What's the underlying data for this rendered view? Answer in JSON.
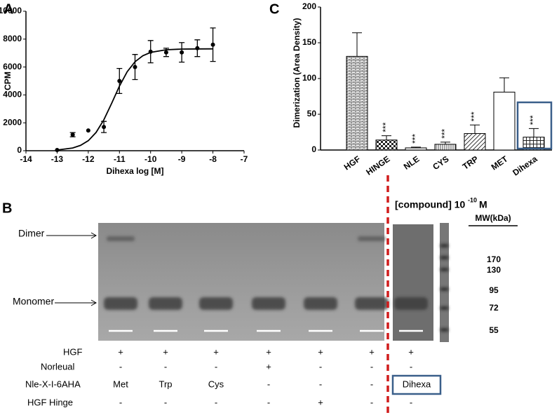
{
  "chart_data": [
    {
      "type": "scatter",
      "panel_label": "A",
      "x_label": "Dihexa log [M]",
      "y_label": "CPM",
      "x": [
        -13,
        -12.5,
        -12,
        -11.5,
        -11,
        -10.5,
        -10,
        -9.5,
        -9,
        -8.5,
        -8
      ],
      "series": [
        {
          "color": "#000000",
          "values": [
            50,
            1150,
            1450,
            1700,
            5000,
            6000,
            7100,
            7050,
            7050,
            7350,
            7600
          ],
          "errors": [
            0,
            150,
            0,
            400,
            900,
            900,
            800,
            300,
            700,
            600,
            1200
          ]
        }
      ],
      "fit": {
        "x": [
          -13,
          -12.5,
          -12.25,
          -12,
          -11.75,
          -11.5,
          -11.25,
          -11,
          -10.75,
          -10.5,
          -10.25,
          -10,
          -9.5,
          -9,
          -8.5,
          -8
        ],
        "values": [
          50,
          196,
          380,
          721,
          1310,
          2221,
          3398,
          4635,
          5667,
          6378,
          6807,
          7044,
          7234,
          7285,
          7298,
          7300
        ]
      },
      "xlim": [
        -14,
        -7
      ],
      "xticks": [
        -14,
        -13,
        -12,
        -11,
        -10,
        -9,
        -8,
        -7
      ],
      "ylim": [
        0,
        10000
      ],
      "yticks": [
        0,
        2000,
        4000,
        6000,
        8000,
        10000
      ]
    },
    {
      "type": "bar",
      "panel_label": "C",
      "y_label": "Dimerization (Area Density)",
      "categories": [
        "HGF",
        "HINGE",
        "NLE",
        "CYS",
        "TRP",
        "MET",
        "Dihexa"
      ],
      "values": [
        131,
        14,
        3,
        8,
        23,
        81,
        18
      ],
      "errors": [
        33,
        6,
        1,
        3,
        12,
        20,
        12
      ],
      "annotations": [
        null,
        "***",
        "***",
        "***",
        "***",
        null,
        "***"
      ],
      "patterns": [
        "bricks",
        "checker",
        "hlines",
        "vlines",
        "diagonal",
        "plain",
        "grid"
      ],
      "highlight_category": "Dihexa",
      "ylim": [
        0,
        200
      ],
      "yticks": [
        0,
        50,
        100,
        150,
        200
      ]
    }
  ],
  "gel": {
    "panel_label": "B",
    "dimer_label": "Dimer",
    "monomer_label": "Monomer",
    "compound_label": "[compound] 10",
    "compound_exponent": "-10",
    "compound_unit": "M",
    "mw_header": "MW(kDa)",
    "mw_markers": [
      170,
      130,
      95,
      72,
      55
    ],
    "conditions": [
      {
        "label": "HGF",
        "cells": [
          "+",
          "+",
          "+",
          "+",
          "+",
          "+",
          "+"
        ]
      },
      {
        "label": "Norleual",
        "cells": [
          "-",
          "-",
          "-",
          "+",
          "-",
          "-",
          "-"
        ]
      },
      {
        "label": "Nle-X-I-6AHA",
        "cells": [
          "Met",
          "Trp",
          "Cys",
          "-",
          "-",
          "-",
          "Dihexa"
        ]
      },
      {
        "label": "HGF Hinge",
        "cells": [
          "-",
          "-",
          "-",
          "-",
          "+",
          "-",
          "-"
        ]
      }
    ]
  }
}
